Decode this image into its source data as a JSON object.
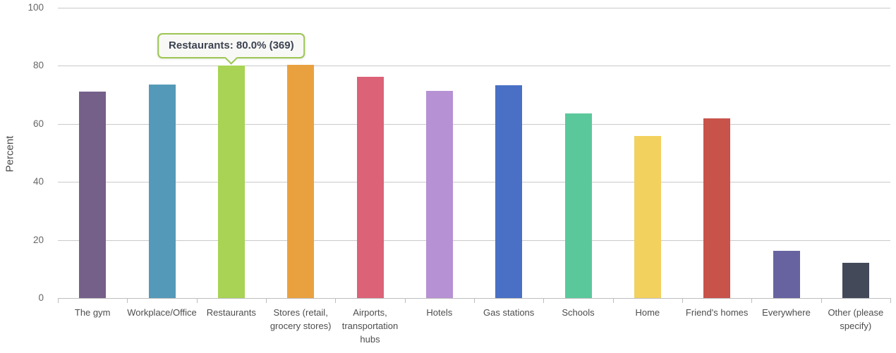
{
  "chart_data": {
    "type": "bar",
    "title": "",
    "xlabel": "",
    "ylabel": "Percent",
    "ylim": [
      0,
      100
    ],
    "yticks": [
      0,
      20,
      40,
      60,
      80,
      100
    ],
    "grid": true,
    "legend": false,
    "categories": [
      "The gym",
      "Workplace/Office",
      "Restaurants",
      "Stores (retail, grocery stores)",
      "Airports, transportation hubs",
      "Hotels",
      "Gas stations",
      "Schools",
      "Home",
      "Friend's homes",
      "Everywhere",
      "Other (please specify)"
    ],
    "values": [
      71.0,
      73.6,
      80.0,
      80.4,
      76.2,
      71.4,
      73.2,
      63.6,
      55.8,
      61.9,
      16.3,
      12.1
    ],
    "colors": [
      "#75608A",
      "#5499B8",
      "#A8D355",
      "#E9A13F",
      "#DB6277",
      "#B691D3",
      "#4970C4",
      "#5BC89C",
      "#F2D15F",
      "#C8534B",
      "#6663A0",
      "#434959"
    ],
    "tooltip": {
      "text": "Restaurants: 80.0% (369)",
      "category": "Restaurants",
      "value_pct": 80.0,
      "count": 369,
      "target_index": 2,
      "border_color": "#9cc653"
    }
  }
}
